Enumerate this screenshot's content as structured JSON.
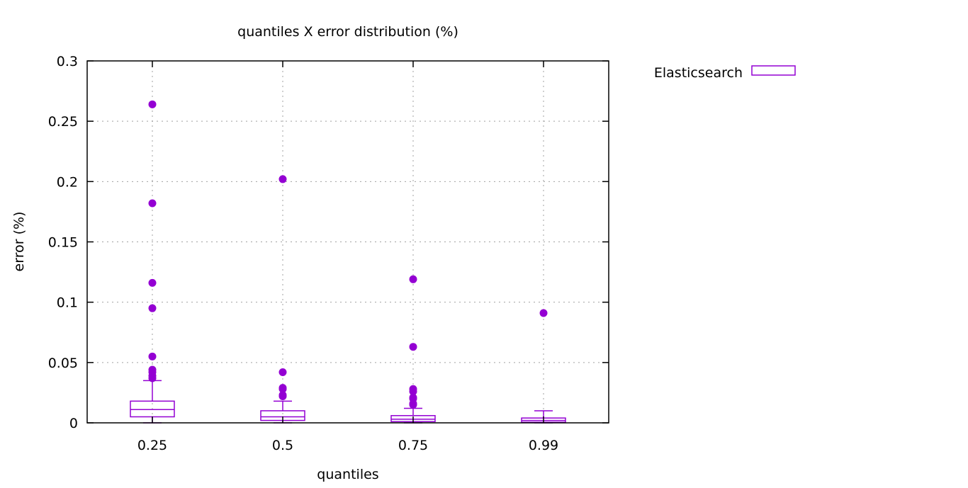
{
  "chart_data": {
    "type": "boxplot",
    "title": "quantiles X error distribution (%)",
    "xlabel": "quantiles",
    "ylabel": "error (%)",
    "ylim": [
      0,
      0.3
    ],
    "yticks": [
      "0",
      "0.05",
      "0.1",
      "0.15",
      "0.2",
      "0.25",
      "0.3"
    ],
    "categories": [
      "0.25",
      "0.5",
      "0.75",
      "0.99"
    ],
    "grid": true,
    "legend_position": "top-right, outside plot",
    "series": [
      {
        "name": "Elasticsearch",
        "color": "#9400D3",
        "boxes": [
          {
            "category": "0.25",
            "whisker_low": 0.0,
            "q1": 0.005,
            "median": 0.011,
            "q3": 0.018,
            "whisker_high": 0.035,
            "outliers": [
              0.037,
              0.039,
              0.042,
              0.044,
              0.055,
              0.095,
              0.116,
              0.182,
              0.264
            ]
          },
          {
            "category": "0.5",
            "whisker_low": 0.0,
            "q1": 0.002,
            "median": 0.005,
            "q3": 0.01,
            "whisker_high": 0.018,
            "outliers": [
              0.022,
              0.023,
              0.028,
              0.029,
              0.042,
              0.202
            ]
          },
          {
            "category": "0.75",
            "whisker_low": 0.0,
            "q1": 0.001,
            "median": 0.003,
            "q3": 0.006,
            "whisker_high": 0.012,
            "outliers": [
              0.015,
              0.016,
              0.02,
              0.021,
              0.026,
              0.028,
              0.063,
              0.119
            ]
          },
          {
            "category": "0.99",
            "whisker_low": 0.0,
            "q1": 0.0005,
            "median": 0.002,
            "q3": 0.004,
            "whisker_high": 0.01,
            "outliers": [
              0.091
            ]
          }
        ]
      }
    ]
  }
}
